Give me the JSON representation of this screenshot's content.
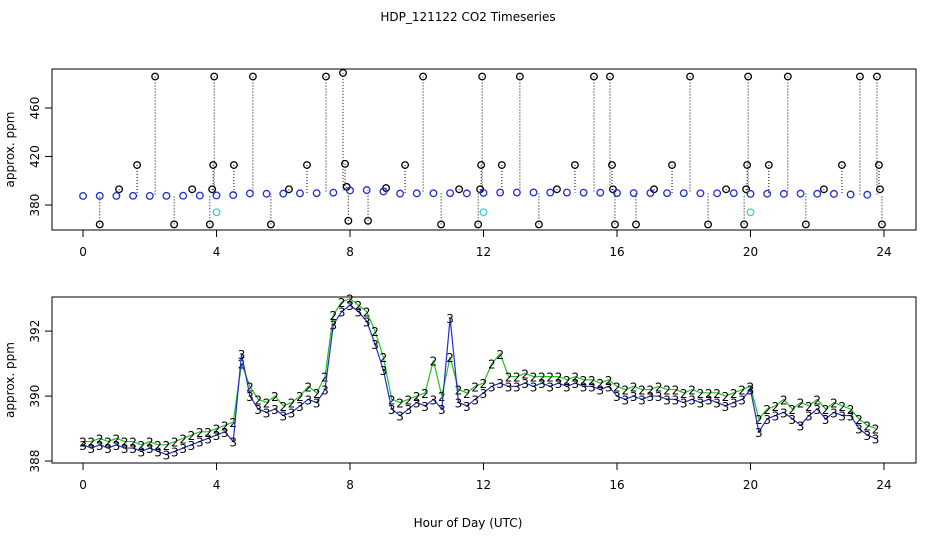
{
  "chart_data": [
    {
      "type": "scatter",
      "title": "HDP_121122  CO2 Timeseries",
      "ylabel": "approx. ppm",
      "xlim": [
        -0.93,
        24.96
      ],
      "ylim": [
        359.4,
        492.2
      ],
      "xticks": [
        0,
        4,
        8,
        12,
        16,
        20,
        24
      ],
      "yticks": [
        380,
        420,
        460
      ],
      "series": [
        {
          "color": "#000000",
          "x": [
            0.5,
            1.08,
            1.62,
            2.16,
            2.73,
            3.27,
            3.8,
            3.87,
            3.9,
            3.93,
            4.52,
            5.09,
            5.63,
            6.17,
            6.71,
            7.28,
            7.79,
            7.85,
            7.9,
            7.95,
            8.54,
            9.08,
            9.65,
            10.19,
            10.73,
            11.27,
            11.84,
            11.9,
            11.93,
            11.96,
            12.55,
            13.09,
            13.66,
            14.2,
            14.74,
            15.31,
            15.79,
            15.85,
            15.88,
            15.94,
            16.57,
            17.11,
            17.65,
            18.19,
            18.73,
            19.27,
            19.81,
            19.87,
            19.9,
            19.93,
            20.55,
            21.12,
            21.66,
            22.2,
            22.74,
            23.28,
            23.79,
            23.85,
            23.88,
            23.94
          ],
          "values": [
            364,
            393,
            413,
            486,
            364,
            393,
            364,
            393,
            413,
            486,
            413,
            486,
            364,
            393,
            413,
            486,
            489,
            414,
            395,
            367,
            367,
            394,
            413,
            486,
            364,
            393,
            364,
            393,
            413,
            486,
            413,
            486,
            364,
            393,
            413,
            486,
            486,
            413,
            393,
            364,
            364,
            393,
            413,
            486,
            364,
            393,
            364,
            393,
            413,
            486,
            413,
            486,
            364,
            393,
            413,
            486,
            486,
            413,
            393,
            364
          ]
        },
        {
          "color": "#1f2fd0",
          "x": [
            0,
            0.5,
            1,
            1.5,
            2,
            2.5,
            3,
            3.5,
            4,
            4.5,
            5,
            5.5,
            6,
            6.5,
            7,
            7.5,
            8,
            8.5,
            9,
            9.5,
            10,
            10.5,
            11,
            11.5,
            12,
            12.5,
            13,
            13.5,
            14,
            14.5,
            15,
            15.5,
            16,
            16.5,
            17,
            17.5,
            18,
            18.5,
            19,
            19.5,
            20,
            20.5,
            21,
            21.5,
            22,
            22.5,
            23,
            23.5
          ],
          "values": [
            387.5,
            387.6,
            387.5,
            387.6,
            387.5,
            387.6,
            387.7,
            387.8,
            387.9,
            388.2,
            389.5,
            389.3,
            389.4,
            389.6,
            389.8,
            390.2,
            392.0,
            392.3,
            391.2,
            389.4,
            389.6,
            389.7,
            389.8,
            389.6,
            390.0,
            390.3,
            390.3,
            390.4,
            390.3,
            390.3,
            390.2,
            390.2,
            389.9,
            389.9,
            389.9,
            389.8,
            389.8,
            389.7,
            389.7,
            389.8,
            389.2,
            389.3,
            389.2,
            389.4,
            389.3,
            389.2,
            388.7,
            388.5
          ]
        },
        {
          "color": "#40d0d0",
          "x": [
            4,
            12,
            20
          ],
          "values": [
            374,
            374,
            374
          ]
        }
      ]
    },
    {
      "type": "scatter",
      "ylabel": "approx. ppm",
      "xlabel": "Hour of Day (UTC)",
      "xlim": [
        -0.93,
        24.96
      ],
      "ylim": [
        387.94,
        393.05
      ],
      "xticks": [
        0,
        4,
        8,
        12,
        16,
        20,
        24
      ],
      "yticks": [
        388,
        390,
        392
      ],
      "x": [
        0,
        0.25,
        0.5,
        0.75,
        1,
        1.25,
        1.5,
        1.75,
        2,
        2.25,
        2.5,
        2.75,
        3,
        3.25,
        3.5,
        3.75,
        4,
        4.25,
        4.5,
        4.75,
        5,
        5.25,
        5.5,
        5.75,
        6,
        6.25,
        6.5,
        6.75,
        7,
        7.25,
        7.5,
        7.75,
        8,
        8.25,
        8.5,
        8.75,
        9,
        9.25,
        9.5,
        9.75,
        10,
        10.25,
        10.5,
        10.75,
        11,
        11.25,
        11.5,
        11.75,
        12,
        12.25,
        12.5,
        12.75,
        13,
        13.25,
        13.5,
        13.75,
        14,
        14.25,
        14.5,
        14.75,
        15,
        15.25,
        15.5,
        15.75,
        16,
        16.25,
        16.5,
        16.75,
        17,
        17.25,
        17.5,
        17.75,
        18,
        18.25,
        18.5,
        18.75,
        19,
        19.25,
        19.5,
        19.75,
        20,
        20.25,
        20.5,
        20.75,
        21,
        21.25,
        21.5,
        21.75,
        22,
        22.25,
        22.5,
        22.75,
        23,
        23.25,
        23.5,
        23.75
      ],
      "series": [
        {
          "name": "2",
          "color": "#22c022",
          "values": [
            388.6,
            388.6,
            388.7,
            388.6,
            388.7,
            388.6,
            388.6,
            388.5,
            388.6,
            388.5,
            388.5,
            388.6,
            388.7,
            388.8,
            388.9,
            388.9,
            389.0,
            389.1,
            389.2,
            391.0,
            390.3,
            389.9,
            389.8,
            390.0,
            389.7,
            389.8,
            390.0,
            390.3,
            390.1,
            390.6,
            392.5,
            392.9,
            393.0,
            392.8,
            392.6,
            392.0,
            391.2,
            389.9,
            389.8,
            389.9,
            390.0,
            390.1,
            391.1,
            390.0,
            391.2,
            390.2,
            390.1,
            390.3,
            390.4,
            391.0,
            391.3,
            390.6,
            390.6,
            390.7,
            390.6,
            390.6,
            390.6,
            390.6,
            390.5,
            390.6,
            390.5,
            390.5,
            390.4,
            390.5,
            390.3,
            390.2,
            390.3,
            390.2,
            390.2,
            390.3,
            390.2,
            390.2,
            390.1,
            390.2,
            390.1,
            390.1,
            390.1,
            390.0,
            390.1,
            390.2,
            390.3,
            389.3,
            389.6,
            389.7,
            389.9,
            389.6,
            389.8,
            389.7,
            389.9,
            389.6,
            389.8,
            389.7,
            389.6,
            389.3,
            389.1,
            389.0
          ]
        },
        {
          "name": "3",
          "color": "#1f2fd0",
          "values": [
            388.5,
            388.4,
            388.5,
            388.4,
            388.5,
            388.4,
            388.4,
            388.3,
            388.4,
            388.3,
            388.2,
            388.3,
            388.4,
            388.5,
            388.6,
            388.7,
            388.8,
            388.9,
            388.6,
            391.3,
            390.0,
            389.6,
            389.5,
            389.6,
            389.4,
            389.5,
            389.7,
            389.9,
            389.8,
            390.2,
            392.2,
            392.6,
            392.8,
            392.6,
            392.3,
            391.6,
            390.8,
            389.6,
            389.4,
            389.6,
            389.8,
            389.7,
            389.9,
            389.6,
            392.4,
            389.8,
            389.7,
            389.9,
            390.1,
            390.3,
            390.4,
            390.3,
            390.3,
            390.4,
            390.3,
            390.4,
            390.3,
            390.4,
            390.3,
            390.4,
            390.3,
            390.3,
            390.2,
            390.3,
            390.0,
            389.9,
            390.0,
            389.9,
            390.0,
            390.0,
            389.9,
            389.9,
            389.8,
            389.9,
            389.8,
            389.9,
            389.8,
            389.7,
            389.8,
            389.9,
            390.2,
            388.9,
            389.3,
            389.4,
            389.5,
            389.3,
            389.1,
            389.4,
            389.6,
            389.3,
            389.5,
            389.4,
            389.4,
            389.0,
            388.8,
            388.7
          ]
        }
      ]
    }
  ]
}
